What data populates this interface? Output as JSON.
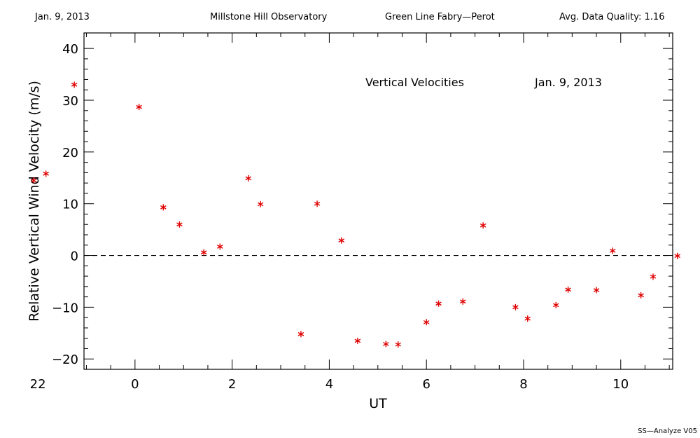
{
  "header": {
    "date": "Jan. 9, 2013",
    "observatory": "Millstone Hill Observatory",
    "instrument": "Green Line Fabry—Perot",
    "quality": "Avg. Data Quality: 1.16"
  },
  "footer": {
    "software": "SS—Analyze V05"
  },
  "chart_data": {
    "type": "scatter",
    "annotation_left": "Vertical Velocities",
    "annotation_right": "Jan. 9, 2013",
    "xlabel": "UT",
    "ylabel": "Relative Vertical Wind Velocity (m/s)",
    "x_tick_labels": [
      "22",
      "0",
      "2",
      "4",
      "6",
      "8",
      "10"
    ],
    "y_tick_labels": [
      "−20",
      "−10",
      "0",
      "10",
      "20",
      "30",
      "40"
    ],
    "ylim": [
      -22,
      43
    ],
    "xlim_hours_ut": [
      22.95,
      35.07
    ],
    "reference_line_y": 0,
    "marker": "asterisk",
    "marker_color": "#e00000",
    "x": [
      "21:55",
      "22:10",
      "22:45",
      "0:05",
      "0:35",
      "0:55",
      "1:25",
      "1:45",
      "2:20",
      "2:35",
      "3:25",
      "3:45",
      "4:15",
      "4:35",
      "5:10",
      "5:25",
      "6:00",
      "6:15",
      "6:45",
      "7:10",
      "7:50",
      "8:05",
      "8:40",
      "8:55",
      "9:30",
      "9:50",
      "10:25",
      "10:40",
      "11:10"
    ],
    "y": [
      14.5,
      15.8,
      33.0,
      28.7,
      9.3,
      6.0,
      0.6,
      1.7,
      14.9,
      9.9,
      -15.2,
      10.0,
      2.9,
      -16.5,
      -17.1,
      -17.2,
      -12.9,
      -9.3,
      -8.9,
      5.8,
      -10.0,
      -12.2,
      -9.6,
      -6.6,
      -6.7,
      0.9,
      -7.7,
      -4.1,
      -0.1
    ]
  }
}
